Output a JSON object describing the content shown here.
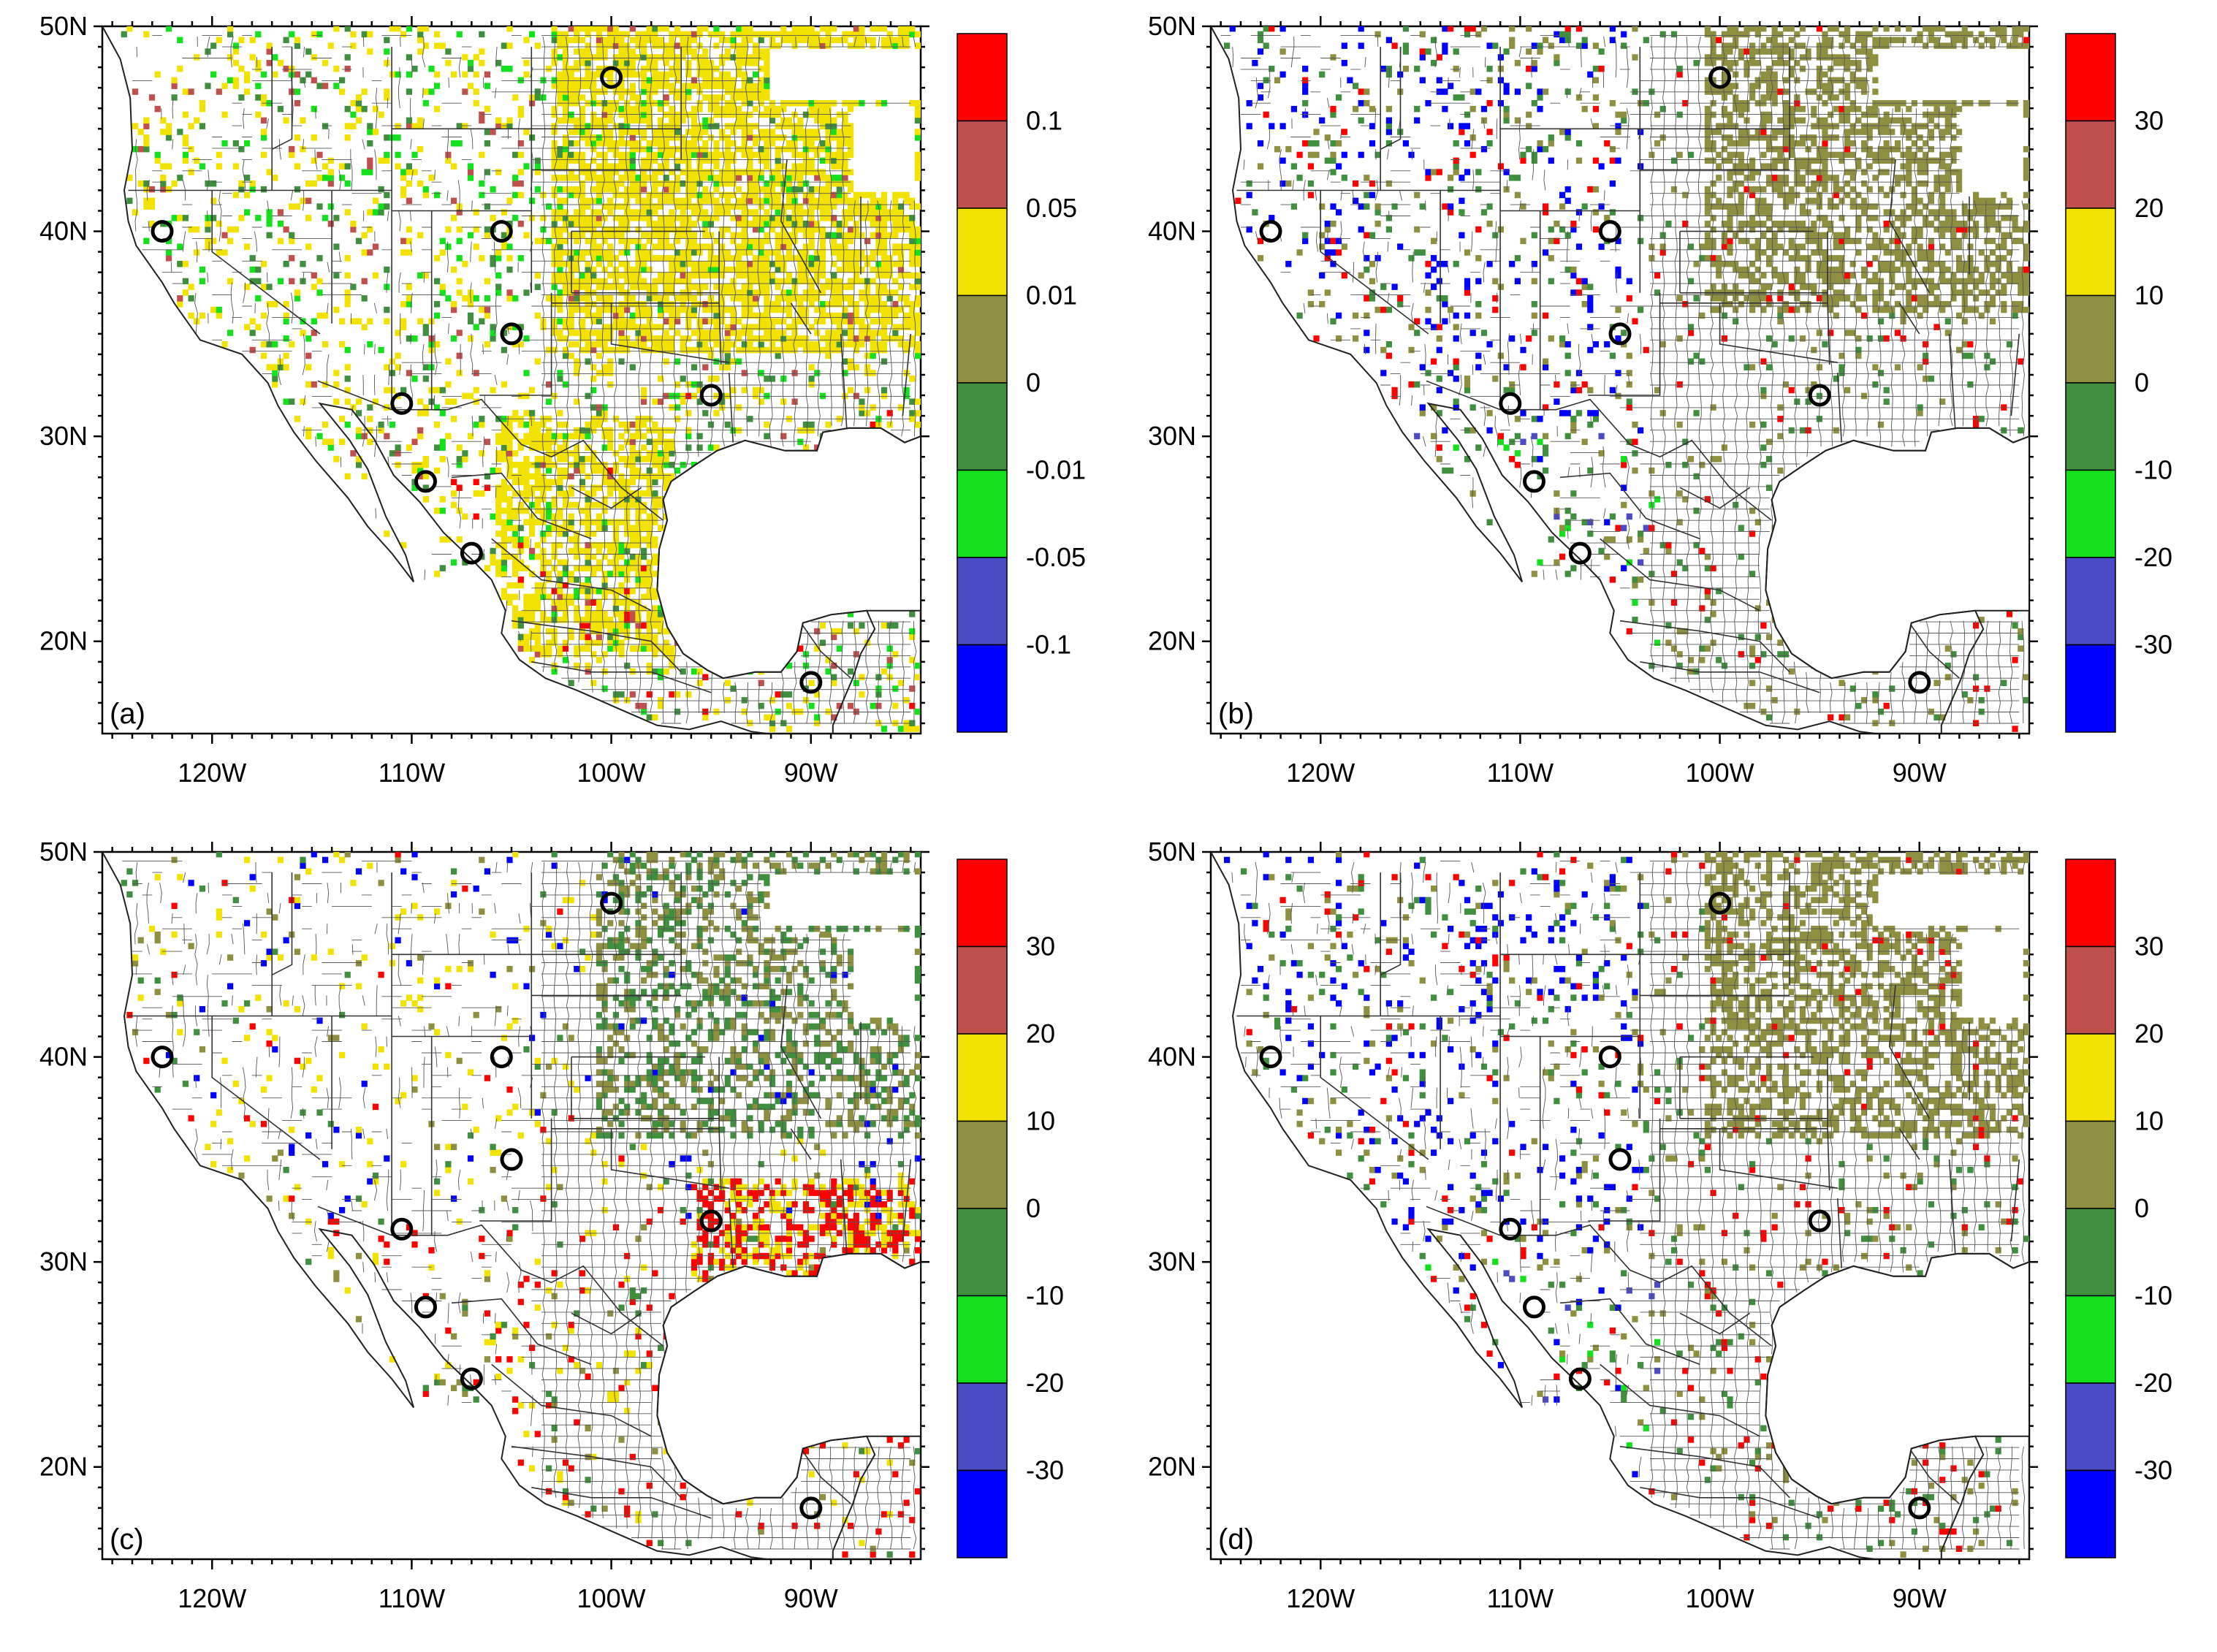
{
  "axes": {
    "lat_labels": [
      "50N",
      "40N",
      "30N",
      "20N"
    ],
    "lon_labels": [
      "120W",
      "110W",
      "100W",
      "90W"
    ]
  },
  "panels": [
    {
      "id": "a",
      "label": "(a)",
      "colorbar": {
        "colors": [
          "#ff0000",
          "#c0504d",
          "#f2e200",
          "#8f8f42",
          "#3f8f3f",
          "#14e01e",
          "#4b4bc8",
          "#0000ff"
        ],
        "labels": [
          "0.1",
          "0.05",
          "0.01",
          "0",
          "-0.01",
          "-0.05",
          "-0.1"
        ]
      },
      "dominant": "yellow"
    },
    {
      "id": "b",
      "label": "(b)",
      "colorbar": {
        "colors": [
          "#ff0000",
          "#c0504d",
          "#f2e200",
          "#8f8f42",
          "#3f8f3f",
          "#14e01e",
          "#4b4bc8",
          "#0000ff"
        ],
        "labels": [
          "30",
          "20",
          "10",
          "0",
          "-10",
          "-20",
          "-30"
        ]
      },
      "dominant": "olive"
    },
    {
      "id": "c",
      "label": "(c)",
      "colorbar": {
        "colors": [
          "#ff0000",
          "#c0504d",
          "#f2e200",
          "#8f8f42",
          "#3f8f3f",
          "#14e01e",
          "#4b4bc8",
          "#0000ff"
        ],
        "labels": [
          "30",
          "20",
          "10",
          "0",
          "-10",
          "-20",
          "-30"
        ]
      },
      "dominant": "mixed"
    },
    {
      "id": "d",
      "label": "(d)",
      "colorbar": {
        "colors": [
          "#ff0000",
          "#c0504d",
          "#f2e200",
          "#8f8f42",
          "#3f8f3f",
          "#14e01e",
          "#4b4bc8",
          "#0000ff"
        ],
        "labels": [
          "30",
          "20",
          "10",
          "0",
          "-10",
          "-20",
          "-30"
        ]
      },
      "dominant": "olive"
    }
  ],
  "sites": [
    {
      "lon": -122.5,
      "lat": 40.0
    },
    {
      "lon": -105.5,
      "lat": 40.0
    },
    {
      "lon": -100.0,
      "lat": 47.5
    },
    {
      "lon": -105.0,
      "lat": 35.0
    },
    {
      "lon": -110.5,
      "lat": 31.6
    },
    {
      "lon": -109.3,
      "lat": 27.8
    },
    {
      "lon": -107.0,
      "lat": 24.3
    },
    {
      "lon": -95.0,
      "lat": 32.0
    },
    {
      "lon": -90.0,
      "lat": 18.0
    }
  ]
}
